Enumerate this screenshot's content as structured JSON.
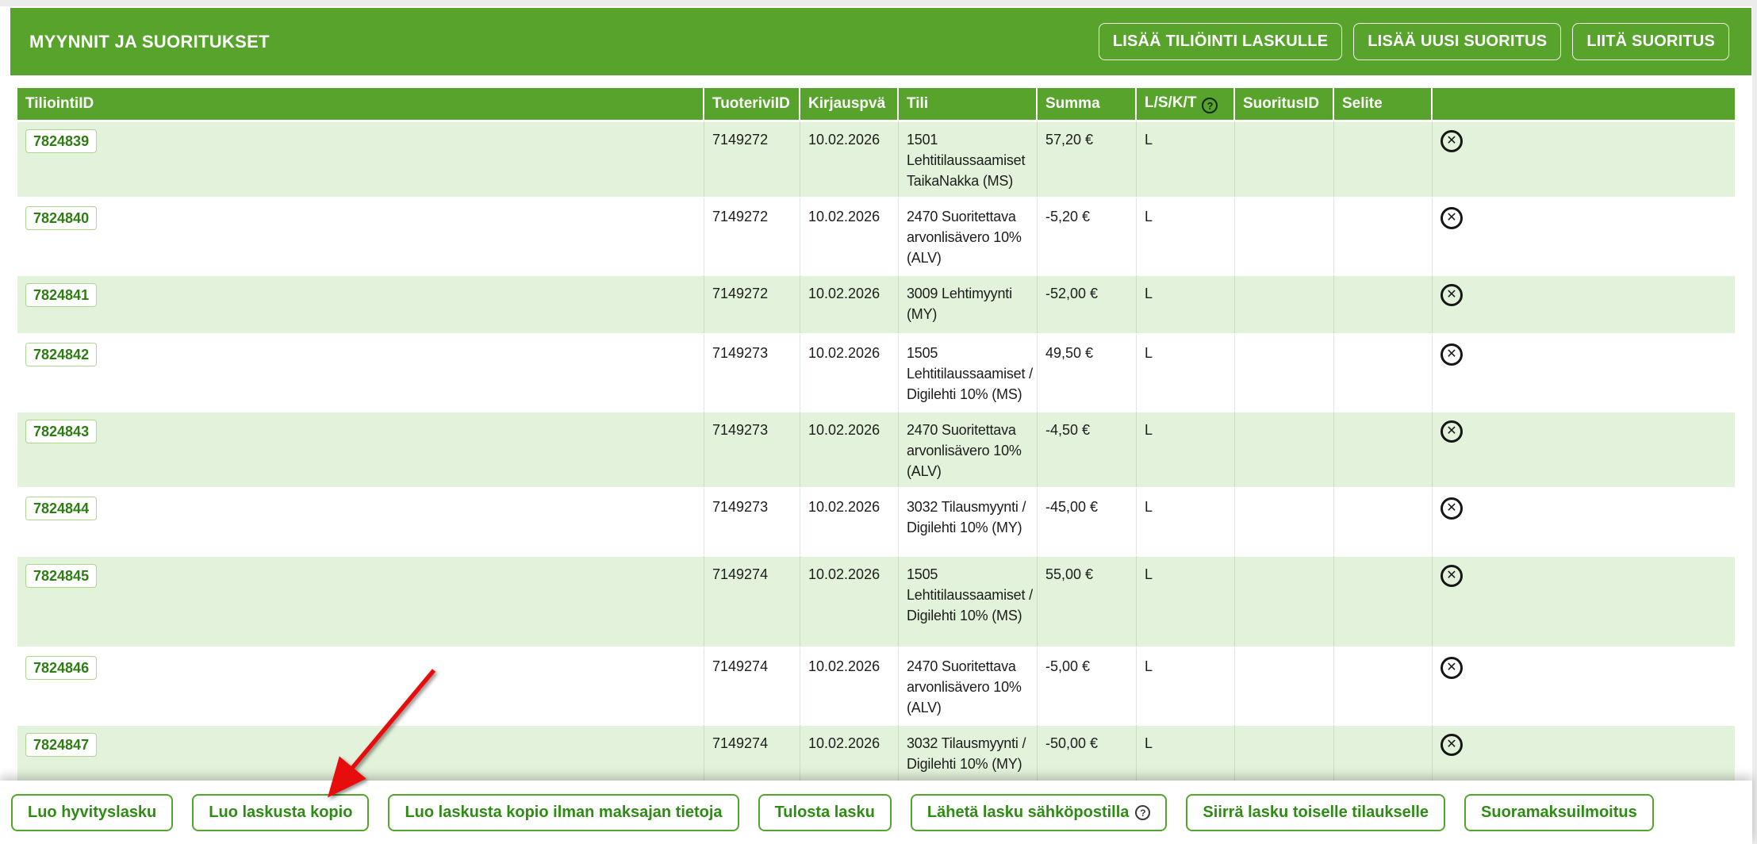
{
  "header": {
    "title": "MYYNNIT JA SUORITUKSET",
    "buttons": [
      "LISÄÄ TILIÖINTI LASKULLE",
      "LISÄÄ UUSI SUORITUS",
      "LIITÄ SUORITUS"
    ]
  },
  "table": {
    "columns": [
      "TiliointiID",
      "TuoteriviID",
      "Kirjauspvä",
      "Tili",
      "Summa",
      "L/S/K/T",
      "SuoritusID",
      "Selite",
      ""
    ],
    "rows": [
      {
        "tiliointi_id": "7824839",
        "tuoterivi_id": "7149272",
        "kirjauspva": "10.02.2026",
        "tili": "1501 Lehtitilaussaamiset TaikaNakka (MS)",
        "summa": "57,20 €",
        "lskt": "L",
        "suoritus_id": "",
        "selite": ""
      },
      {
        "tiliointi_id": "7824840",
        "tuoterivi_id": "7149272",
        "kirjauspva": "10.02.2026",
        "tili": "2470 Suoritettava arvonlisävero 10% (ALV)",
        "summa": "-5,20 €",
        "lskt": "L",
        "suoritus_id": "",
        "selite": ""
      },
      {
        "tiliointi_id": "7824841",
        "tuoterivi_id": "7149272",
        "kirjauspva": "10.02.2026",
        "tili": "3009 Lehtimyynti (MY)",
        "summa": "-52,00 €",
        "lskt": "L",
        "suoritus_id": "",
        "selite": ""
      },
      {
        "tiliointi_id": "7824842",
        "tuoterivi_id": "7149273",
        "kirjauspva": "10.02.2026",
        "tili": "1505 Lehtitilaussaamiset / Digilehti 10% (MS)",
        "summa": "49,50 €",
        "lskt": "L",
        "suoritus_id": "",
        "selite": ""
      },
      {
        "tiliointi_id": "7824843",
        "tuoterivi_id": "7149273",
        "kirjauspva": "10.02.2026",
        "tili": "2470 Suoritettava arvonlisävero 10% (ALV)",
        "summa": "-4,50 €",
        "lskt": "L",
        "suoritus_id": "",
        "selite": ""
      },
      {
        "tiliointi_id": "7824844",
        "tuoterivi_id": "7149273",
        "kirjauspva": "10.02.2026",
        "tili": "3032 Tilausmyynti / Digilehti 10% (MY)",
        "summa": "-45,00 €",
        "lskt": "L",
        "suoritus_id": "",
        "selite": ""
      },
      {
        "tiliointi_id": "7824845",
        "tuoterivi_id": "7149274",
        "kirjauspva": "10.02.2026",
        "tili": "1505 Lehtitilaussaamiset / Digilehti 10% (MS)",
        "summa": "55,00 €",
        "lskt": "L",
        "suoritus_id": "",
        "selite": ""
      },
      {
        "tiliointi_id": "7824846",
        "tuoterivi_id": "7149274",
        "kirjauspva": "10.02.2026",
        "tili": "2470 Suoritettava arvonlisävero 10% (ALV)",
        "summa": "-5,00 €",
        "lskt": "L",
        "suoritus_id": "",
        "selite": ""
      },
      {
        "tiliointi_id": "7824847",
        "tuoterivi_id": "7149274",
        "kirjauspva": "10.02.2026",
        "tili": "3032 Tilausmyynti / Digilehti 10% (MY)",
        "summa": "-50,00 €",
        "lskt": "L",
        "suoritus_id": "",
        "selite": ""
      }
    ]
  },
  "footer": {
    "buttons": [
      {
        "label": "Luo hyvityslasku",
        "help": false
      },
      {
        "label": "Luo laskusta kopio",
        "help": false
      },
      {
        "label": "Luo laskusta kopio ilman maksajan tietoja",
        "help": false
      },
      {
        "label": "Tulosta lasku",
        "help": false
      },
      {
        "label": "Lähetä lasku sähköpostilla",
        "help": true
      },
      {
        "label": "Siirrä lasku toiselle tilaukselle",
        "help": false
      },
      {
        "label": "Suoramaksuilmoitus",
        "help": false
      }
    ]
  },
  "icons": {
    "help_glyph": "?",
    "delete_glyph": "✕"
  },
  "colors": {
    "panel_green": "#57a32b",
    "row_green": "#e3f3db",
    "link_green": "#2e7d13",
    "button_green": "#2e8c15",
    "arrow_red": "#e81111"
  }
}
